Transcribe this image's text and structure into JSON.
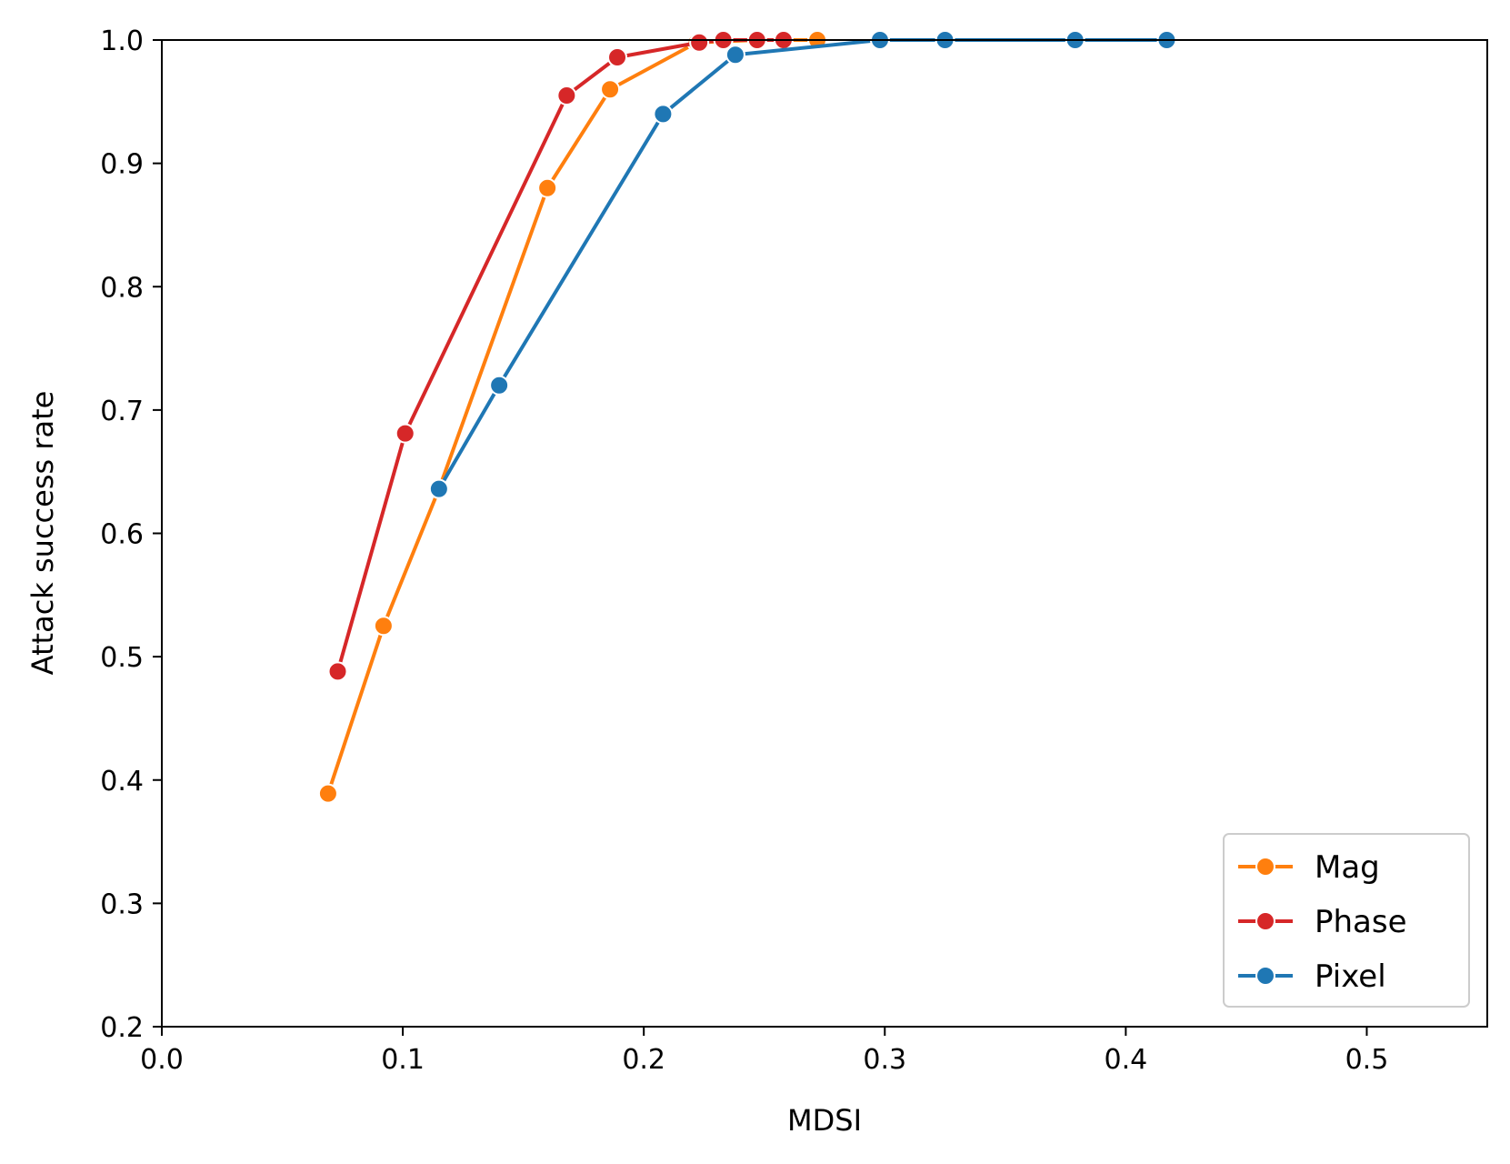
{
  "chart_data": {
    "type": "line",
    "title": "",
    "xlabel": "MDSI",
    "ylabel": "Attack success rate",
    "xlim": [
      0.0,
      0.55
    ],
    "ylim": [
      0.2,
      1.0
    ],
    "xticks": [
      "0.0",
      "0.1",
      "0.2",
      "0.3",
      "0.4",
      "0.5"
    ],
    "yticks": [
      "0.2",
      "0.3",
      "0.4",
      "0.5",
      "0.6",
      "0.7",
      "0.8",
      "0.9",
      "1.0"
    ],
    "grid": false,
    "legend_position": "lower-right",
    "series": [
      {
        "name": "Mag",
        "color": "#ff7f0e",
        "x": [
          0.069,
          0.092,
          0.115,
          0.16,
          0.186,
          0.222,
          0.247,
          0.272
        ],
        "y": [
          0.389,
          0.525,
          0.636,
          0.88,
          0.96,
          0.998,
          1.0,
          1.0
        ]
      },
      {
        "name": "Phase",
        "color": "#d62728",
        "x": [
          0.073,
          0.101,
          0.168,
          0.189,
          0.223,
          0.233,
          0.247,
          0.258
        ],
        "y": [
          0.488,
          0.681,
          0.955,
          0.986,
          0.998,
          1.0,
          1.0,
          1.0
        ]
      },
      {
        "name": "Pixel",
        "color": "#1f77b4",
        "x": [
          0.115,
          0.14,
          0.208,
          0.238,
          0.298,
          0.325,
          0.379,
          0.417
        ],
        "y": [
          0.636,
          0.72,
          0.94,
          0.988,
          1.0,
          1.0,
          1.0,
          1.0
        ]
      }
    ]
  }
}
